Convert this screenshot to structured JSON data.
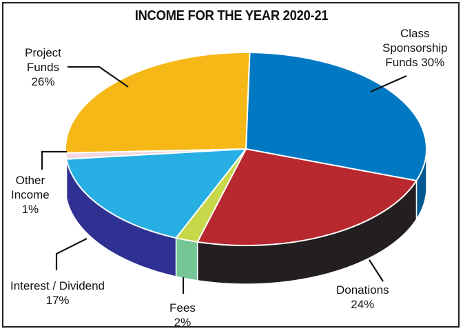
{
  "chart_data": {
    "type": "pie",
    "title": "INCOME FOR THE YEAR 2020-21",
    "slices": [
      {
        "label_lines": [
          "Class",
          "Sponsorship",
          "Funds 30%"
        ],
        "value": 30,
        "color": "#0079c2",
        "side_color": "#005a92"
      },
      {
        "label_lines": [
          "Donations",
          "24%"
        ],
        "value": 24,
        "color": "#b8282f",
        "side_color": "#231f20"
      },
      {
        "label_lines": [
          "Fees",
          "2%"
        ],
        "value": 2,
        "color": "#c7d94a",
        "side_color": "#74c695"
      },
      {
        "label_lines": [
          "Interest / Dividend",
          "17%"
        ],
        "value": 17,
        "color": "#27aee3",
        "side_color": "#2e3192"
      },
      {
        "label_lines": [
          "Other",
          "Income",
          "1%"
        ],
        "value": 1,
        "color": "#f2d7e3",
        "side_color": "#8a7a85"
      },
      {
        "label_lines": [
          "Project",
          "Funds",
          "26%"
        ],
        "value": 26,
        "color": "#f5b817",
        "side_color": "#c08a00"
      }
    ]
  }
}
